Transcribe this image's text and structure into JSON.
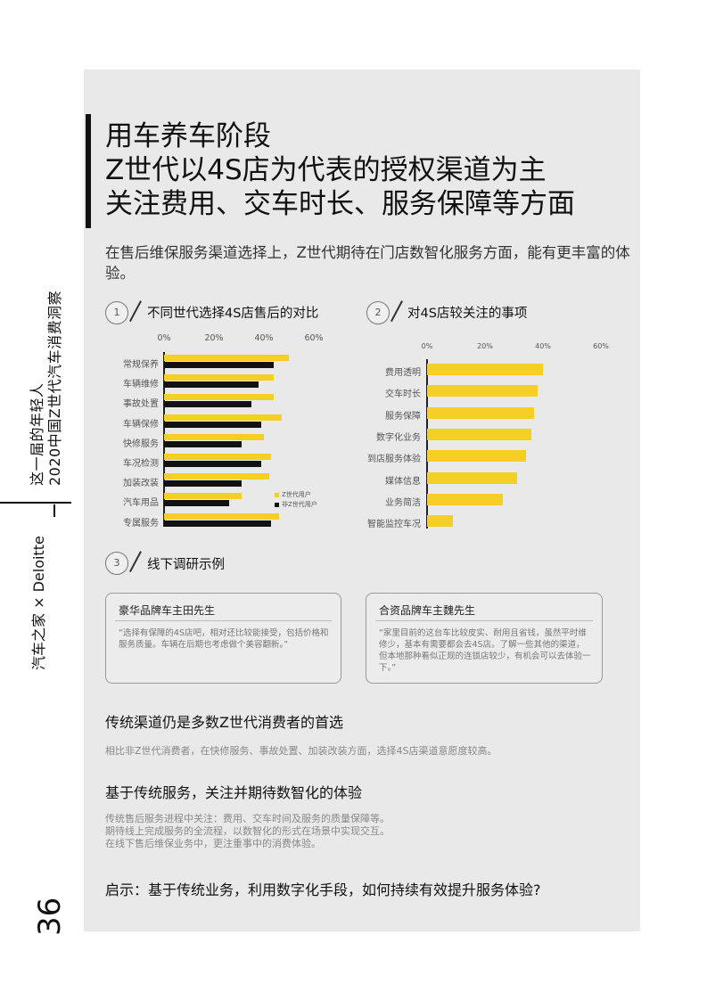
{
  "sidebar": {
    "line1": "这一届的年轻人",
    "line2": "2020中国Z世代汽车消费洞察",
    "brand": "汽车之家 × Deloitte",
    "page_number": "36"
  },
  "header": {
    "title_line1": "用车养车阶段",
    "title_line2": "Z世代以4S店为代表的授权渠道为主",
    "title_line3": "关注费用、交车时长、服务保障等方面"
  },
  "intro": "在售后维保服务渠道选择上，Z世代期待在门店数智化服务方面，能有更丰富的体验。",
  "section1": {
    "num": "1",
    "title": "不同世代选择4S店售后的对比"
  },
  "section2": {
    "num": "2",
    "title": "对4S店较关注的事项"
  },
  "section3": {
    "num": "3",
    "title": "线下调研示例"
  },
  "colors": {
    "z_gen": "#f5cf26",
    "non_z": "#111111",
    "accent": "#111111"
  },
  "chart_data": [
    {
      "type": "bar",
      "orientation": "horizontal",
      "ticks": [
        "0%",
        "20%",
        "40%",
        "60%"
      ],
      "xlim": [
        0,
        60
      ],
      "categories": [
        "常规保养",
        "车辆维修",
        "事故处置",
        "车辆保修",
        "快修服务",
        "车况检测",
        "加装改装",
        "汽车用品",
        "专属服务"
      ],
      "series": [
        {
          "name": "Z世代用户",
          "color": "#f5cf26",
          "values": [
            50,
            44,
            44,
            47,
            40,
            43,
            42,
            31,
            46
          ]
        },
        {
          "name": "非Z世代用户",
          "color": "#111111",
          "values": [
            44,
            38,
            35,
            39,
            31,
            39,
            31,
            26,
            43
          ]
        }
      ],
      "legend_position": "right"
    },
    {
      "type": "bar",
      "orientation": "horizontal",
      "ticks": [
        "0%",
        "20%",
        "40%",
        "60%"
      ],
      "xlim": [
        0,
        60
      ],
      "categories": [
        "费用透明",
        "交车时长",
        "服务保障",
        "数字化业务",
        "到店服务体验",
        "媒体信息",
        "业务简洁",
        "智能监控车况"
      ],
      "values": [
        40,
        38,
        37,
        36,
        34,
        31,
        26,
        9
      ],
      "color": "#f5cf26"
    }
  ],
  "cards": [
    {
      "title": "豪华品牌车主田先生",
      "body": "“选择有保障的4S店吧，相对还比较能接受，包括价格和服务质量。车辆在后期也考虑做个美容翻新。”"
    },
    {
      "title": "合资品牌车主魏先生",
      "body": "“家里目前的这台车比较皮实、耐用且省钱，虽然平时维修少，基本有需要都会去4S店。了解一些其他的渠道，但本地那种看似正规的连锁店较少，有机会可以去体验一下。”"
    }
  ],
  "findings": [
    {
      "heading": "传统渠道仍是多数Z世代消费者的首选",
      "lines": [
        "相比非Z世代消费者，在快修服务、事故处置、加装改装方面，选择4S店渠道意愿度较高。"
      ]
    },
    {
      "heading": "基于传统服务，关注并期待数智化的体验",
      "lines": [
        "传统售后服务进程中关注：费用、交车时间及服务的质量保障等。",
        "期待线上完成服务的全流程，以数智化的形式在场景中实现交互。",
        "在线下售后维保业务中，更注重事中的消费体验。"
      ]
    }
  ],
  "closing": "启示：基于传统业务，利用数字化手段，如何持续有效提升服务体验?"
}
